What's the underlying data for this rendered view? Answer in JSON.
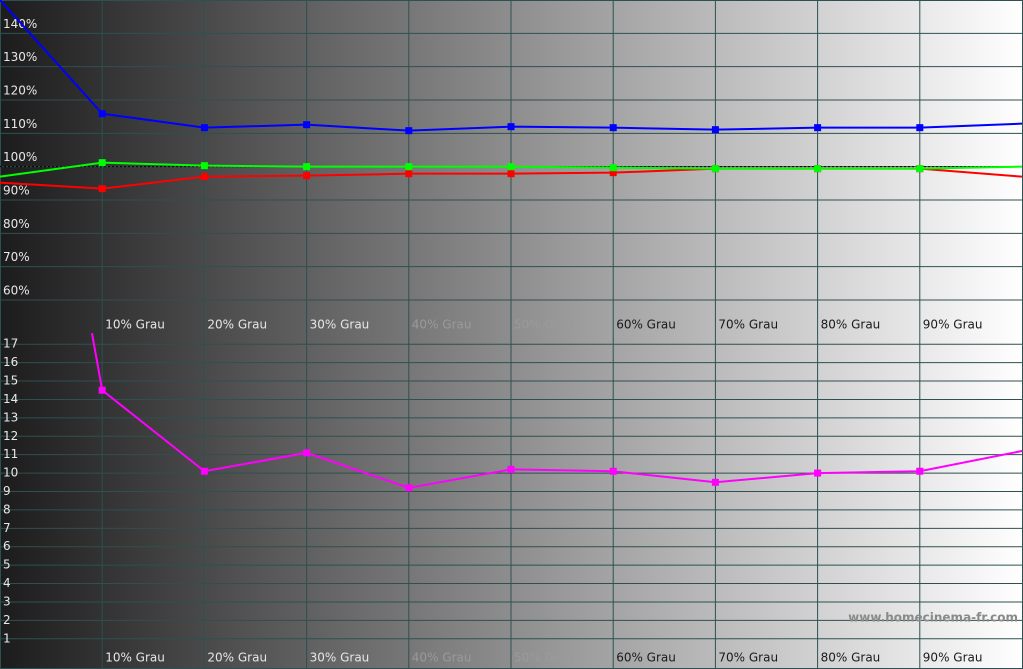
{
  "chart_data": [
    {
      "type": "line",
      "x": [
        0,
        10,
        20,
        30,
        40,
        50,
        60,
        70,
        80,
        90,
        100
      ],
      "xlim": [
        0,
        100
      ],
      "xticks": [
        {
          "value": 10,
          "label": "10% Grau"
        },
        {
          "value": 20,
          "label": "20% Grau"
        },
        {
          "value": 30,
          "label": "30% Grau"
        },
        {
          "value": 40,
          "label": "40% Grau"
        },
        {
          "value": 50,
          "label": "50% Grau"
        },
        {
          "value": 60,
          "label": "60% Grau"
        },
        {
          "value": 70,
          "label": "70% Grau"
        },
        {
          "value": 80,
          "label": "80% Grau"
        },
        {
          "value": 90,
          "label": "90% Grau"
        }
      ],
      "ylim": [
        60,
        150
      ],
      "yticks": [
        {
          "value": 60,
          "label": "60%"
        },
        {
          "value": 70,
          "label": "70%"
        },
        {
          "value": 80,
          "label": "80%"
        },
        {
          "value": 90,
          "label": "90%"
        },
        {
          "value": 100,
          "label": "100%"
        },
        {
          "value": 110,
          "label": "110%"
        },
        {
          "value": 120,
          "label": "120%"
        },
        {
          "value": 130,
          "label": "130%"
        },
        {
          "value": 140,
          "label": "140%"
        }
      ],
      "reference_line": 100,
      "grid": true,
      "series": [
        {
          "color": "#ff0000",
          "values": [
            95.2,
            93.4,
            97,
            97.3,
            97.9,
            97.9,
            98.2,
            99.4,
            99.4,
            99.4,
            97
          ]
        },
        {
          "color": "#00ff00",
          "values": [
            97,
            101.2,
            100.3,
            100,
            100,
            100,
            99.7,
            99.4,
            99.4,
            99.4,
            100
          ]
        },
        {
          "color": "#0000ff",
          "values": [
            150,
            115.9,
            111.7,
            112.6,
            110.8,
            112,
            111.7,
            111.1,
            111.7,
            111.7,
            112.9
          ]
        }
      ]
    },
    {
      "type": "line",
      "x": [
        9,
        10,
        20,
        30,
        40,
        50,
        60,
        70,
        80,
        90,
        100
      ],
      "xlim": [
        0,
        100
      ],
      "xticks": [
        {
          "value": 10,
          "label": "10% Grau"
        },
        {
          "value": 20,
          "label": "20% Grau"
        },
        {
          "value": 30,
          "label": "30% Grau"
        },
        {
          "value": 40,
          "label": "40% Grau"
        },
        {
          "value": 50,
          "label": "50% Grau"
        },
        {
          "value": 60,
          "label": "60% Grau"
        },
        {
          "value": 70,
          "label": "70% Grau"
        },
        {
          "value": 80,
          "label": "80% Grau"
        },
        {
          "value": 90,
          "label": "90% Grau"
        }
      ],
      "ylim": [
        0.5,
        17.5
      ],
      "yticks": [
        1,
        2,
        3,
        4,
        5,
        6,
        7,
        8,
        9,
        10,
        11,
        12,
        13,
        14,
        15,
        16,
        17
      ],
      "grid": true,
      "series": [
        {
          "color": "#ff00ff",
          "values": [
            17.6,
            14.5,
            10.1,
            11.1,
            9.2,
            10.2,
            10.1,
            9.5,
            10,
            10.1,
            11.2
          ]
        }
      ]
    },
    {
      "watermark": "www.homecinema-fr.com"
    }
  ]
}
